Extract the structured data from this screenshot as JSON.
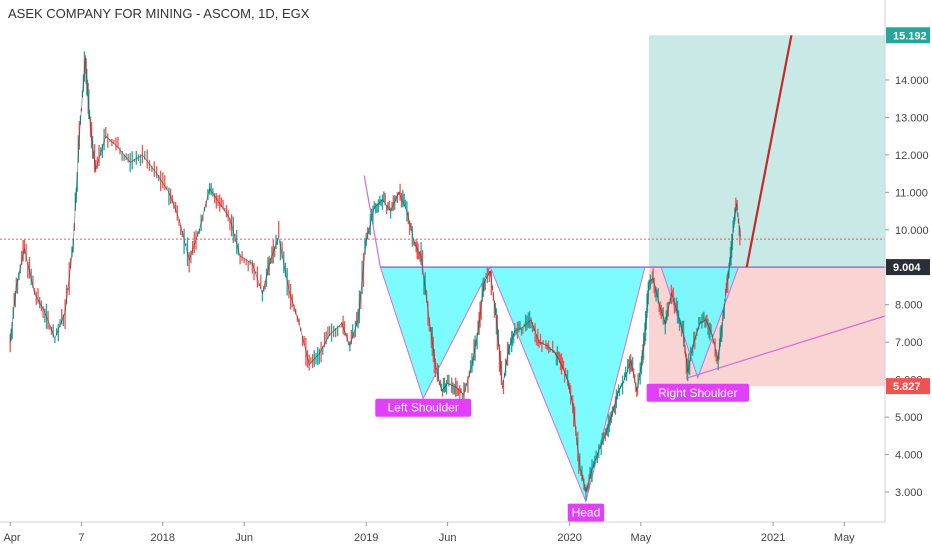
{
  "chart_data": {
    "type": "line",
    "title": "ASEK COMPANY FOR MINING - ASCOM, 1D, EGX",
    "ylim": [
      2.2,
      15.6
    ],
    "y_ticks": [
      3.0,
      4.0,
      5.0,
      6.0,
      7.0,
      8.0,
      9.0,
      10.0,
      11.0,
      12.0,
      13.0,
      14.0
    ],
    "y_tick_labels": [
      "3.000",
      "4.000",
      "5.000",
      "6.000",
      "7.000",
      "8.000",
      "9.000",
      "10.000",
      "11.000",
      "12.000",
      "13.000",
      "14.000"
    ],
    "x_ticks": [
      {
        "label": "Apr",
        "t": 0.0
      },
      {
        "label": "7",
        "t": 0.35
      },
      {
        "label": "2018",
        "t": 0.75
      },
      {
        "label": "Jun",
        "t": 1.15
      },
      {
        "label": "2019",
        "t": 1.75
      },
      {
        "label": "Jun",
        "t": 2.15
      },
      {
        "label": "2020",
        "t": 2.75
      },
      {
        "label": "May",
        "t": 3.1
      },
      {
        "label": "2021",
        "t": 3.75
      },
      {
        "label": "May",
        "t": 4.1
      }
    ],
    "t_range": [
      -0.05,
      4.3
    ],
    "series": [
      {
        "points": [
          [
            0.0,
            7.0
          ],
          [
            0.03,
            8.5
          ],
          [
            0.07,
            9.5
          ],
          [
            0.12,
            8.3
          ],
          [
            0.17,
            7.8
          ],
          [
            0.22,
            7.1
          ],
          [
            0.27,
            7.8
          ],
          [
            0.31,
            9.6
          ],
          [
            0.34,
            12.5
          ],
          [
            0.37,
            14.6
          ],
          [
            0.39,
            13.0
          ],
          [
            0.42,
            11.6
          ],
          [
            0.47,
            12.5
          ],
          [
            0.53,
            12.2
          ],
          [
            0.59,
            11.8
          ],
          [
            0.65,
            12.0
          ],
          [
            0.72,
            11.5
          ],
          [
            0.78,
            11.0
          ],
          [
            0.83,
            10.3
          ],
          [
            0.88,
            9.2
          ],
          [
            0.93,
            10.0
          ],
          [
            0.98,
            11.1
          ],
          [
            1.03,
            10.7
          ],
          [
            1.08,
            10.3
          ],
          [
            1.13,
            9.3
          ],
          [
            1.19,
            9.1
          ],
          [
            1.24,
            8.3
          ],
          [
            1.28,
            9.2
          ],
          [
            1.32,
            9.8
          ],
          [
            1.37,
            8.4
          ],
          [
            1.42,
            7.5
          ],
          [
            1.47,
            6.4
          ],
          [
            1.52,
            6.7
          ],
          [
            1.57,
            7.2
          ],
          [
            1.63,
            7.5
          ],
          [
            1.67,
            6.9
          ],
          [
            1.71,
            7.6
          ],
          [
            1.75,
            9.7
          ],
          [
            1.79,
            10.6
          ],
          [
            1.83,
            10.8
          ],
          [
            1.87,
            10.5
          ],
          [
            1.91,
            11.0
          ],
          [
            1.95,
            10.5
          ],
          [
            1.99,
            9.6
          ],
          [
            2.02,
            9.3
          ],
          [
            2.06,
            7.6
          ],
          [
            2.09,
            6.4
          ],
          [
            2.12,
            5.7
          ],
          [
            2.15,
            5.9
          ],
          [
            2.19,
            5.8
          ],
          [
            2.23,
            5.6
          ],
          [
            2.27,
            6.4
          ],
          [
            2.3,
            7.3
          ],
          [
            2.33,
            8.6
          ],
          [
            2.36,
            8.9
          ],
          [
            2.39,
            7.6
          ],
          [
            2.42,
            5.8
          ],
          [
            2.45,
            6.8
          ],
          [
            2.48,
            7.3
          ],
          [
            2.52,
            7.4
          ],
          [
            2.56,
            7.6
          ],
          [
            2.6,
            7.0
          ],
          [
            2.64,
            6.9
          ],
          [
            2.68,
            6.7
          ],
          [
            2.71,
            6.4
          ],
          [
            2.74,
            6.0
          ],
          [
            2.77,
            5.2
          ],
          [
            2.8,
            3.7
          ],
          [
            2.83,
            3.0
          ],
          [
            2.86,
            3.6
          ],
          [
            2.9,
            4.2
          ],
          [
            2.93,
            4.6
          ],
          [
            2.96,
            5.1
          ],
          [
            2.99,
            5.7
          ],
          [
            3.02,
            6.0
          ],
          [
            3.05,
            6.5
          ],
          [
            3.08,
            5.7
          ],
          [
            3.1,
            6.3
          ],
          [
            3.12,
            7.2
          ],
          [
            3.14,
            8.6
          ],
          [
            3.16,
            8.7
          ],
          [
            3.19,
            8.0
          ],
          [
            3.22,
            7.5
          ],
          [
            3.25,
            8.3
          ],
          [
            3.28,
            7.8
          ],
          [
            3.31,
            7.2
          ],
          [
            3.33,
            6.2
          ],
          [
            3.36,
            7.0
          ],
          [
            3.39,
            7.5
          ],
          [
            3.42,
            7.6
          ],
          [
            3.45,
            7.2
          ],
          [
            3.48,
            6.5
          ],
          [
            3.5,
            7.5
          ],
          [
            3.52,
            8.4
          ],
          [
            3.54,
            9.2
          ],
          [
            3.56,
            10.3
          ],
          [
            3.57,
            10.7
          ],
          [
            3.59,
            9.8
          ]
        ]
      }
    ],
    "neckline": 9.004,
    "current_price_line": 9.75,
    "target_price": 15.192,
    "stop_price": 5.827,
    "price_tags": [
      {
        "label": "15.192",
        "value": 15.192,
        "color": "#26a69a"
      },
      {
        "label": "9.004",
        "value": 9.004,
        "color": "#2a2e39"
      },
      {
        "label": "5.827",
        "value": 5.827,
        "color": "#ef5350"
      }
    ],
    "pattern": {
      "left_shoulder": {
        "label": "Left Shoulder",
        "tri": [
          [
            1.82,
            9.004
          ],
          [
            2.03,
            5.5
          ],
          [
            2.36,
            9.004
          ]
        ],
        "label_at": [
          2.03,
          5.25
        ]
      },
      "head": {
        "label": "Head",
        "tri": [
          [
            2.36,
            9.004
          ],
          [
            2.83,
            2.75
          ],
          [
            3.12,
            9.004
          ]
        ],
        "label_at": [
          2.83,
          2.45
        ]
      },
      "right_shoulder": {
        "label": "Right Shoulder",
        "tri": [
          [
            3.2,
            9.004
          ],
          [
            3.38,
            6.05
          ],
          [
            3.58,
            9.004
          ]
        ],
        "label_at": [
          3.38,
          5.65
        ]
      },
      "lead_in_line": [
        [
          1.74,
          11.45
        ],
        [
          1.82,
          9.004
        ]
      ]
    },
    "target_zone": {
      "t_start": 3.14,
      "t_end": 4.3,
      "top": 15.192,
      "bottom": 9.004,
      "color": "#b2dfdb"
    },
    "stop_zone": {
      "t_start": 3.14,
      "t_end": 4.3,
      "top": 9.004,
      "bottom": 5.827,
      "color": "#f8c9c8"
    },
    "projection_line": [
      [
        3.62,
        9.004
      ],
      [
        3.84,
        15.192
      ]
    ],
    "rising_trendline": [
      [
        3.33,
        6.05
      ],
      [
        4.3,
        7.7
      ]
    ],
    "colors": {
      "up": "#26a69a",
      "down": "#ef5350",
      "pattern_fill": "#66fcff",
      "pattern_stroke": "#d56bdc",
      "label_bg": "#e040fb",
      "projection": "#c62828",
      "neckline": "#9575cd",
      "current_price": "#ef5350"
    }
  }
}
